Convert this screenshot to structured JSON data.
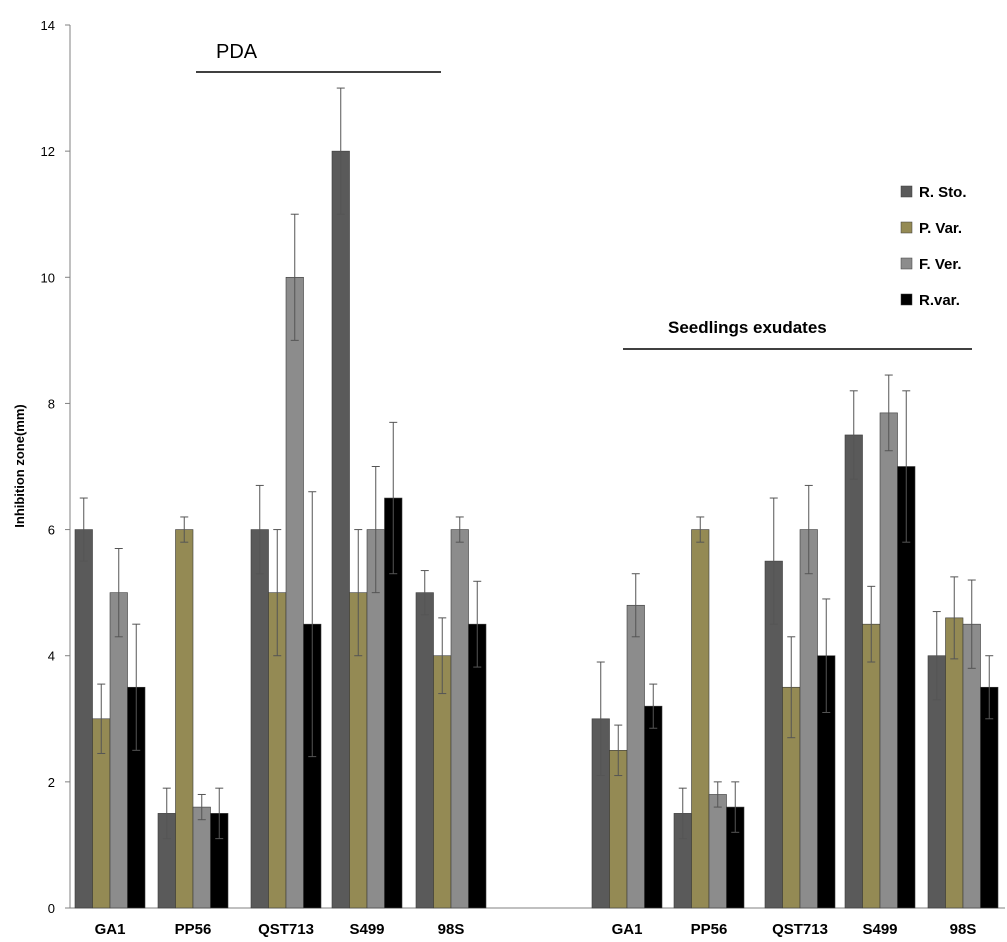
{
  "chart_data": {
    "type": "bar",
    "ylabel": "Inhibition zone(mm)",
    "ylim": [
      0,
      14
    ],
    "yticks": [
      "0",
      "2",
      "4",
      "6",
      "8",
      "10",
      "12",
      "14"
    ],
    "grid": false,
    "legend_position": "right",
    "groups": [
      {
        "title": "PDA",
        "categories": [
          "GA1",
          "PP56",
          "QST713",
          "S499",
          "98S"
        ]
      },
      {
        "title": "Seedlings exudates",
        "categories": [
          "GA1",
          "PP56",
          "QST713",
          "S499",
          "98S"
        ]
      }
    ],
    "series": [
      {
        "name": "R. Sto.",
        "color": "#5a5a5a",
        "values": [
          6.0,
          1.5,
          6.0,
          12.0,
          5.0,
          3.0,
          1.5,
          5.5,
          7.5,
          4.0
        ],
        "errors": [
          0.5,
          0.4,
          0.7,
          1.0,
          0.35,
          0.9,
          0.4,
          1.0,
          0.7,
          0.7
        ]
      },
      {
        "name": "P. Var.",
        "color": "#948a54",
        "values": [
          3.0,
          6.0,
          5.0,
          5.0,
          4.0,
          2.5,
          6.0,
          3.5,
          4.5,
          4.6
        ],
        "errors": [
          0.55,
          0.2,
          1.0,
          1.0,
          0.6,
          0.4,
          0.2,
          0.8,
          0.6,
          0.65
        ]
      },
      {
        "name": "F. Ver.",
        "color": "#8c8c8c",
        "values": [
          5.0,
          1.6,
          10.0,
          6.0,
          6.0,
          4.8,
          1.8,
          6.0,
          7.85,
          4.5
        ],
        "errors": [
          0.7,
          0.2,
          1.0,
          1.0,
          0.2,
          0.5,
          0.2,
          0.7,
          0.6,
          0.7
        ]
      },
      {
        "name": "R.var.",
        "color": "#000000",
        "values": [
          3.5,
          1.5,
          4.5,
          6.5,
          4.5,
          3.2,
          1.6,
          4.0,
          7.0,
          3.5
        ],
        "errors": [
          1.0,
          0.4,
          2.1,
          1.2,
          0.68,
          0.35,
          0.4,
          0.9,
          1.2,
          0.5
        ]
      }
    ]
  }
}
